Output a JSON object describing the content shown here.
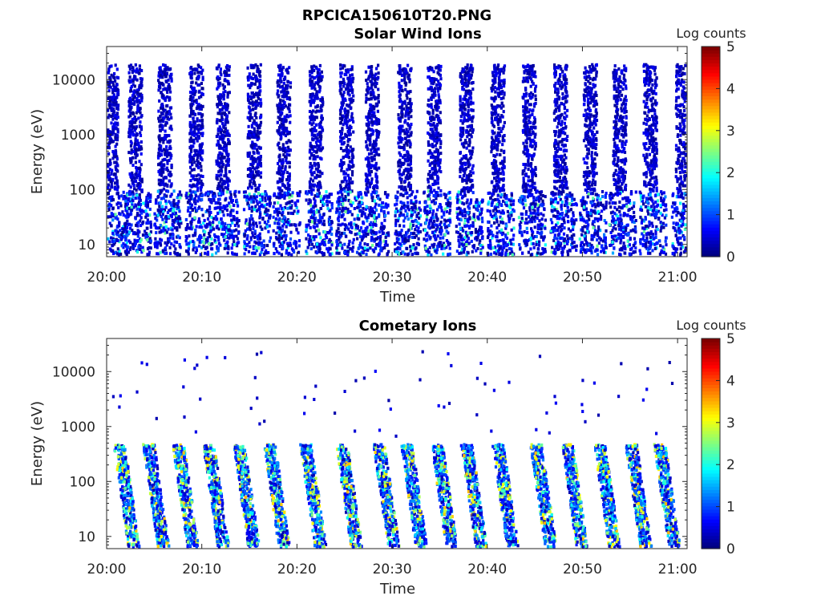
{
  "figure": {
    "filename": "RPCICA150610T20.PNG"
  },
  "chart_data": [
    {
      "type": "heatmap",
      "title": "Solar Wind Ions",
      "xlabel": "Time",
      "ylabel": "Energy (eV)",
      "x_ticks": [
        "20:00",
        "20:10",
        "20:20",
        "20:30",
        "20:40",
        "20:50",
        "21:00"
      ],
      "x_range": [
        "20:00",
        "21:01"
      ],
      "y_scale": "log",
      "y_ticks": [
        "10",
        "100",
        "1000",
        "10000"
      ],
      "y_range": [
        6,
        40000
      ],
      "colorbar": {
        "label": "Log counts",
        "min": 0,
        "max": 5,
        "ticks": [
          "0",
          "1",
          "2",
          "3",
          "4",
          "5"
        ],
        "colormap": "jet"
      },
      "pattern": {
        "note_period_min": 3.3,
        "low_energy_band_eV": [
          6,
          100
        ],
        "high_energy_band_eV": [
          100,
          20000
        ],
        "peak_log_counts": 2.5,
        "sweeps_at_min": [
          0.3,
          2.8,
          5.9,
          9.2,
          12.0,
          15.3,
          18.4,
          21.8,
          25.0,
          27.7,
          31.1,
          34.2,
          37.6,
          40.9,
          44.2,
          47.5,
          50.6,
          53.7,
          56.9,
          60.3
        ]
      }
    },
    {
      "type": "heatmap",
      "title": "Cometary Ions",
      "xlabel": "Time",
      "ylabel": "Energy (eV)",
      "x_ticks": [
        "20:00",
        "20:10",
        "20:20",
        "20:30",
        "20:40",
        "20:50",
        "21:00"
      ],
      "x_range": [
        "20:00",
        "21:01"
      ],
      "y_scale": "log",
      "y_ticks": [
        "10",
        "100",
        "1000",
        "10000"
      ],
      "y_range": [
        6,
        40000
      ],
      "colorbar": {
        "label": "Log counts",
        "min": 0,
        "max": 5,
        "ticks": [
          "0",
          "1",
          "2",
          "3",
          "4",
          "5"
        ],
        "colormap": "jet"
      },
      "pattern": {
        "main_band_eV": [
          6,
          500
        ],
        "peak_log_counts": 3.5,
        "streaks_at_min": [
          1.2,
          4.3,
          7.4,
          10.6,
          13.8,
          17.0,
          20.8,
          24.6,
          28.5,
          31.4,
          34.6,
          37.7,
          41.0,
          45.0,
          48.3,
          51.7,
          55.0,
          58.0
        ]
      }
    }
  ]
}
